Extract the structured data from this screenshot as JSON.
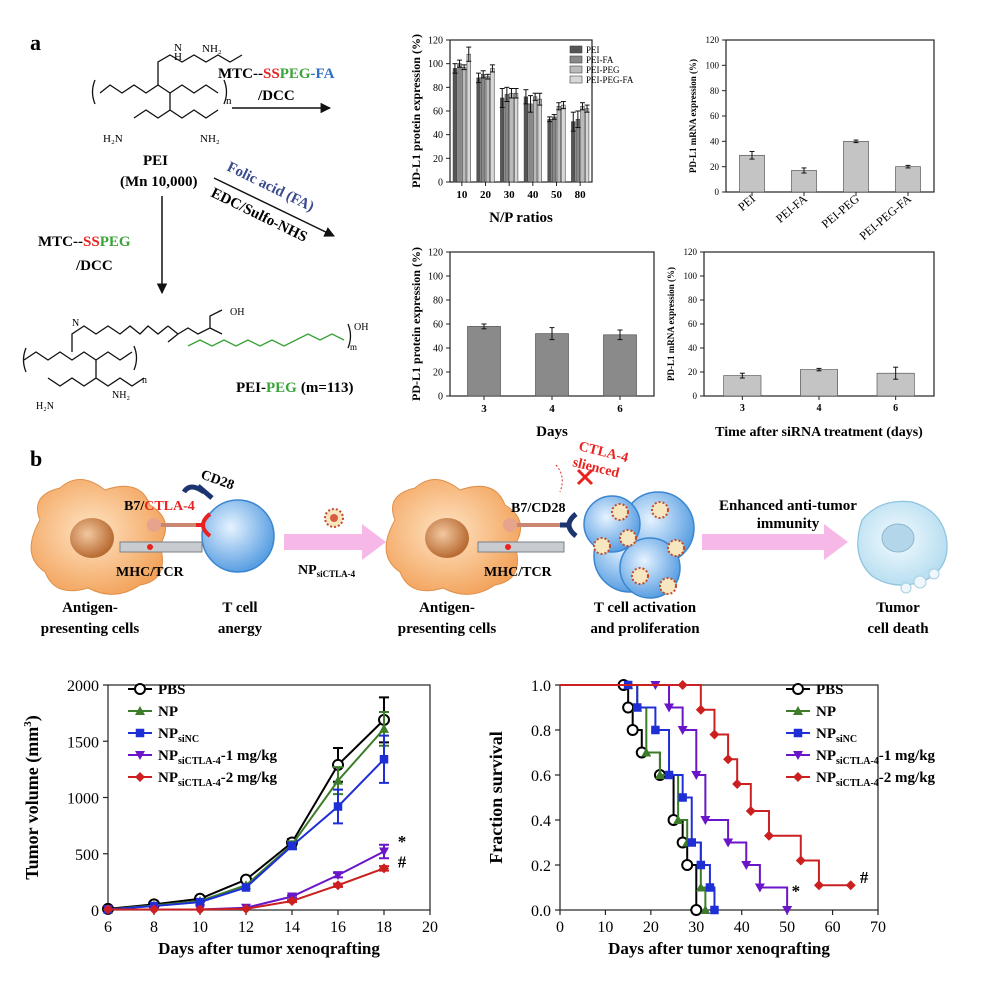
{
  "panel_a": {
    "label": "a",
    "chemistry": {
      "amine_1": "NH₂",
      "amine_2": "H₂N",
      "amine_3": "NH₂",
      "n_label": "n",
      "pei_name": "PEI",
      "pei_mn": "(Mn 10,000)",
      "reagent_top_1": "MTC--",
      "reagent_top_2": "SS",
      "reagent_top_3": "PEG",
      "reagent_top_4": "-FA",
      "reagent_top_5": "/DCC",
      "reagent_diag_1": "Folic acid (FA)",
      "reagent_diag_2": "EDC/Sulfo-NHS",
      "reagent_left_1": "MTC--",
      "reagent_left_2": "SS",
      "reagent_left_3": "PEG",
      "reagent_left_4": "/DCC",
      "product_name_1": "PEI-",
      "product_name_2": "PEG",
      "product_name_3": "(m=113)",
      "oh_label": "OH",
      "m_label": "m",
      "colors": {
        "red": "#e8231f",
        "green": "#3aa33a",
        "blue": "#2f6fc7",
        "navy": "#3b4c8e"
      }
    }
  },
  "panel_b": {
    "label": "b",
    "schematic": {
      "b7_label": "B7/",
      "ctla4_label": "CTLA-4",
      "cd28_label": "CD28",
      "mhc_label": "MHC/TCR",
      "np_label_main": "NP",
      "np_label_sub": "siCTLA-4",
      "apc_label_1": "Antigen-",
      "apc_label_2": "presenting cells",
      "tcell_label_1": "T cell",
      "tcell_label_2": "anergy",
      "b7cd28_label": "B7/CD28",
      "ctla4_silenced_1": "CTLA-4",
      "ctla4_silenced_2": "slienced",
      "activation_1": "T cell activation",
      "activation_2": "and proliferation",
      "enhanced_1": "Enhanced anti-tumor",
      "enhanced_2": "immunity",
      "tumor_1": "Tumor",
      "tumor_2": "cell death",
      "apc2_label_1": "Antigen-",
      "apc2_label_2": "presenting cells",
      "mhc2_label": "MHC/TCR"
    }
  },
  "chart_data": [
    {
      "id": "protein_np",
      "type": "bar",
      "title": "",
      "xlabel": "N/P ratios",
      "ylabel": "PD-L1 protein expression (%)",
      "categories": [
        "10",
        "20",
        "30",
        "40",
        "50",
        "80"
      ],
      "ylim": [
        0,
        120
      ],
      "yticks": [
        0,
        20,
        40,
        60,
        80,
        100,
        120
      ],
      "legend_position": "top-right",
      "series": [
        {
          "name": "PEI",
          "color": "#555555",
          "values": [
            96,
            88,
            71,
            72,
            53,
            51
          ],
          "errors": [
            4,
            4,
            8,
            6,
            2,
            8
          ]
        },
        {
          "name": "PEI-FA",
          "color": "#888888",
          "values": [
            100,
            91,
            74,
            66,
            55,
            53
          ],
          "errors": [
            3,
            3,
            6,
            7,
            2,
            7
          ]
        },
        {
          "name": "PEI-PEG",
          "color": "#bbbbbb",
          "values": [
            97,
            89,
            75,
            72,
            64,
            64
          ],
          "errors": [
            2,
            2,
            4,
            3,
            3,
            3
          ]
        },
        {
          "name": "PEI-PEG-FA",
          "color": "#d8d8d8",
          "values": [
            108,
            96,
            75,
            70,
            65,
            62
          ],
          "errors": [
            6,
            3,
            4,
            5,
            3,
            3
          ]
        }
      ]
    },
    {
      "id": "mrna_materials",
      "type": "bar",
      "title": "",
      "xlabel": "",
      "ylabel": "PD-L1 mRNA expression (%)",
      "categories": [
        "PEI",
        "PEI-FA",
        "PEI-PEG",
        "PEI-PEG-FA"
      ],
      "ylim": [
        0,
        120
      ],
      "yticks": [
        0,
        20,
        40,
        60,
        80,
        100,
        120
      ],
      "series": [
        {
          "name": "mRNA",
          "color": "#c4c4c4",
          "values": [
            29,
            17,
            40,
            20
          ],
          "errors": [
            3,
            2,
            1,
            1
          ]
        }
      ]
    },
    {
      "id": "protein_days",
      "type": "bar",
      "title": "",
      "xlabel": "Days",
      "ylabel": "PD-L1 protein expression (%)",
      "categories": [
        "3",
        "4",
        "6"
      ],
      "ylim": [
        0,
        120
      ],
      "yticks": [
        0,
        20,
        40,
        60,
        80,
        100,
        120
      ],
      "series": [
        {
          "name": "protein",
          "color": "#8a8a8a",
          "values": [
            58,
            52,
            51
          ],
          "errors": [
            2,
            5,
            4
          ]
        }
      ]
    },
    {
      "id": "mrna_days",
      "type": "bar",
      "title": "",
      "xlabel": "Time after siRNA treatment (days)",
      "ylabel": "PD-L1 mRNA expression (%)",
      "categories": [
        "3",
        "4",
        "6"
      ],
      "ylim": [
        0,
        120
      ],
      "yticks": [
        0,
        20,
        40,
        60,
        80,
        100,
        120
      ],
      "series": [
        {
          "name": "mRNA",
          "color": "#c4c4c4",
          "values": [
            17,
            22,
            19
          ],
          "errors": [
            2,
            1,
            5
          ]
        }
      ]
    },
    {
      "id": "tumor_volume",
      "type": "line",
      "title": "",
      "xlabel": "Days after tumor xenoqrafting",
      "ylabel_main": "Tumor volume (mm",
      "ylabel_sup": "3",
      "ylabel_end": ")",
      "xlim": [
        6,
        20
      ],
      "ylim": [
        0,
        2000
      ],
      "xticks": [
        6,
        8,
        10,
        12,
        14,
        16,
        18,
        20
      ],
      "yticks": [
        0,
        500,
        1000,
        1500,
        2000
      ],
      "legend_position": "top-left",
      "annotations": [
        {
          "text": "*",
          "x": 18.6,
          "y": 560
        },
        {
          "text": "#",
          "x": 18.6,
          "y": 380
        }
      ],
      "series": [
        {
          "name": "PBS",
          "sub": "",
          "suffix": "",
          "color": "#000000",
          "marker": "circle-open",
          "x": [
            6,
            8,
            10,
            12,
            14,
            16,
            18
          ],
          "y": [
            10,
            50,
            100,
            270,
            600,
            1290,
            1690
          ],
          "errors": [
            0,
            0,
            0,
            0,
            30,
            150,
            200
          ]
        },
        {
          "name": "NP",
          "sub": "",
          "suffix": "",
          "color": "#3d7d2a",
          "marker": "triangle",
          "x": [
            6,
            8,
            10,
            12,
            14,
            16,
            18
          ],
          "y": [
            5,
            40,
            80,
            220,
            580,
            1150,
            1610
          ],
          "errors": [
            0,
            0,
            0,
            0,
            30,
            120,
            150
          ]
        },
        {
          "name": "NP",
          "sub": "siNC",
          "suffix": "",
          "color": "#1f2fd6",
          "marker": "square",
          "x": [
            6,
            8,
            10,
            12,
            14,
            16,
            18
          ],
          "y": [
            5,
            35,
            70,
            200,
            570,
            920,
            1340
          ],
          "errors": [
            0,
            0,
            0,
            0,
            30,
            150,
            210
          ]
        },
        {
          "name": "NP",
          "sub": "siCTLA-4",
          "suffix": "-1 mg/kg",
          "color": "#6a16c8",
          "marker": "triangle-down",
          "x": [
            6,
            8,
            10,
            12,
            14,
            16,
            18
          ],
          "y": [
            5,
            5,
            5,
            20,
            120,
            310,
            520
          ],
          "errors": [
            0,
            0,
            0,
            0,
            10,
            20,
            60
          ]
        },
        {
          "name": "NP",
          "sub": "siCTLA-4",
          "suffix": "-2 mg/kg",
          "color": "#cc2020",
          "marker": "diamond",
          "x": [
            6,
            8,
            10,
            12,
            14,
            16,
            18
          ],
          "y": [
            5,
            5,
            5,
            10,
            80,
            220,
            370
          ],
          "errors": [
            0,
            0,
            0,
            0,
            10,
            15,
            20
          ]
        }
      ]
    },
    {
      "id": "survival",
      "type": "line",
      "title": "",
      "xlabel": "Days after tumor xenoqrafting",
      "ylabel": "Fraction survival",
      "xlim": [
        0,
        70
      ],
      "ylim": [
        0,
        1.0
      ],
      "xticks": [
        0,
        10,
        20,
        30,
        40,
        50,
        60,
        70
      ],
      "yticks": [
        0.0,
        0.2,
        0.4,
        0.6,
        0.8,
        1.0
      ],
      "legend_position": "top-right",
      "annotations": [
        {
          "text": "*",
          "x": 51,
          "y": 0.06
        },
        {
          "text": "#",
          "x": 66,
          "y": 0.12
        }
      ],
      "series": [
        {
          "name": "PBS",
          "sub": "",
          "suffix": "",
          "color": "#000000",
          "marker": "circle-open",
          "x": [
            0,
            14,
            15,
            16,
            18,
            22,
            25,
            27,
            28,
            30
          ],
          "y": [
            1.0,
            1.0,
            0.9,
            0.8,
            0.7,
            0.6,
            0.4,
            0.3,
            0.2,
            0.0
          ]
        },
        {
          "name": "NP",
          "sub": "",
          "suffix": "",
          "color": "#3d7d2a",
          "marker": "triangle",
          "x": [
            0,
            15,
            17,
            19,
            22,
            26,
            28,
            31,
            32
          ],
          "y": [
            1.0,
            1.0,
            0.9,
            0.7,
            0.6,
            0.4,
            0.3,
            0.1,
            0.0
          ]
        },
        {
          "name": "NP",
          "sub": "siNC",
          "suffix": "",
          "color": "#1f2fd6",
          "marker": "square",
          "x": [
            0,
            15,
            17,
            21,
            24,
            27,
            29,
            31,
            33,
            34
          ],
          "y": [
            1.0,
            1.0,
            0.9,
            0.8,
            0.6,
            0.5,
            0.3,
            0.2,
            0.1,
            0.0
          ]
        },
        {
          "name": "NP",
          "sub": "siCTLA-4",
          "suffix": "-1 mg/kg",
          "color": "#6a16c8",
          "marker": "triangle-down",
          "x": [
            0,
            21,
            24,
            27,
            30,
            32,
            37,
            41,
            44,
            50
          ],
          "y": [
            1.0,
            1.0,
            0.9,
            0.8,
            0.6,
            0.4,
            0.3,
            0.2,
            0.1,
            0.0
          ]
        },
        {
          "name": "NP",
          "sub": "siCTLA-4",
          "suffix": "-2 mg/kg",
          "color": "#cc2020",
          "marker": "diamond",
          "x": [
            0,
            27,
            31,
            34,
            37,
            39,
            42,
            46,
            53,
            57,
            64
          ],
          "y": [
            1.0,
            1.0,
            0.89,
            0.78,
            0.67,
            0.56,
            0.44,
            0.33,
            0.22,
            0.11,
            0.11
          ]
        }
      ]
    }
  ]
}
